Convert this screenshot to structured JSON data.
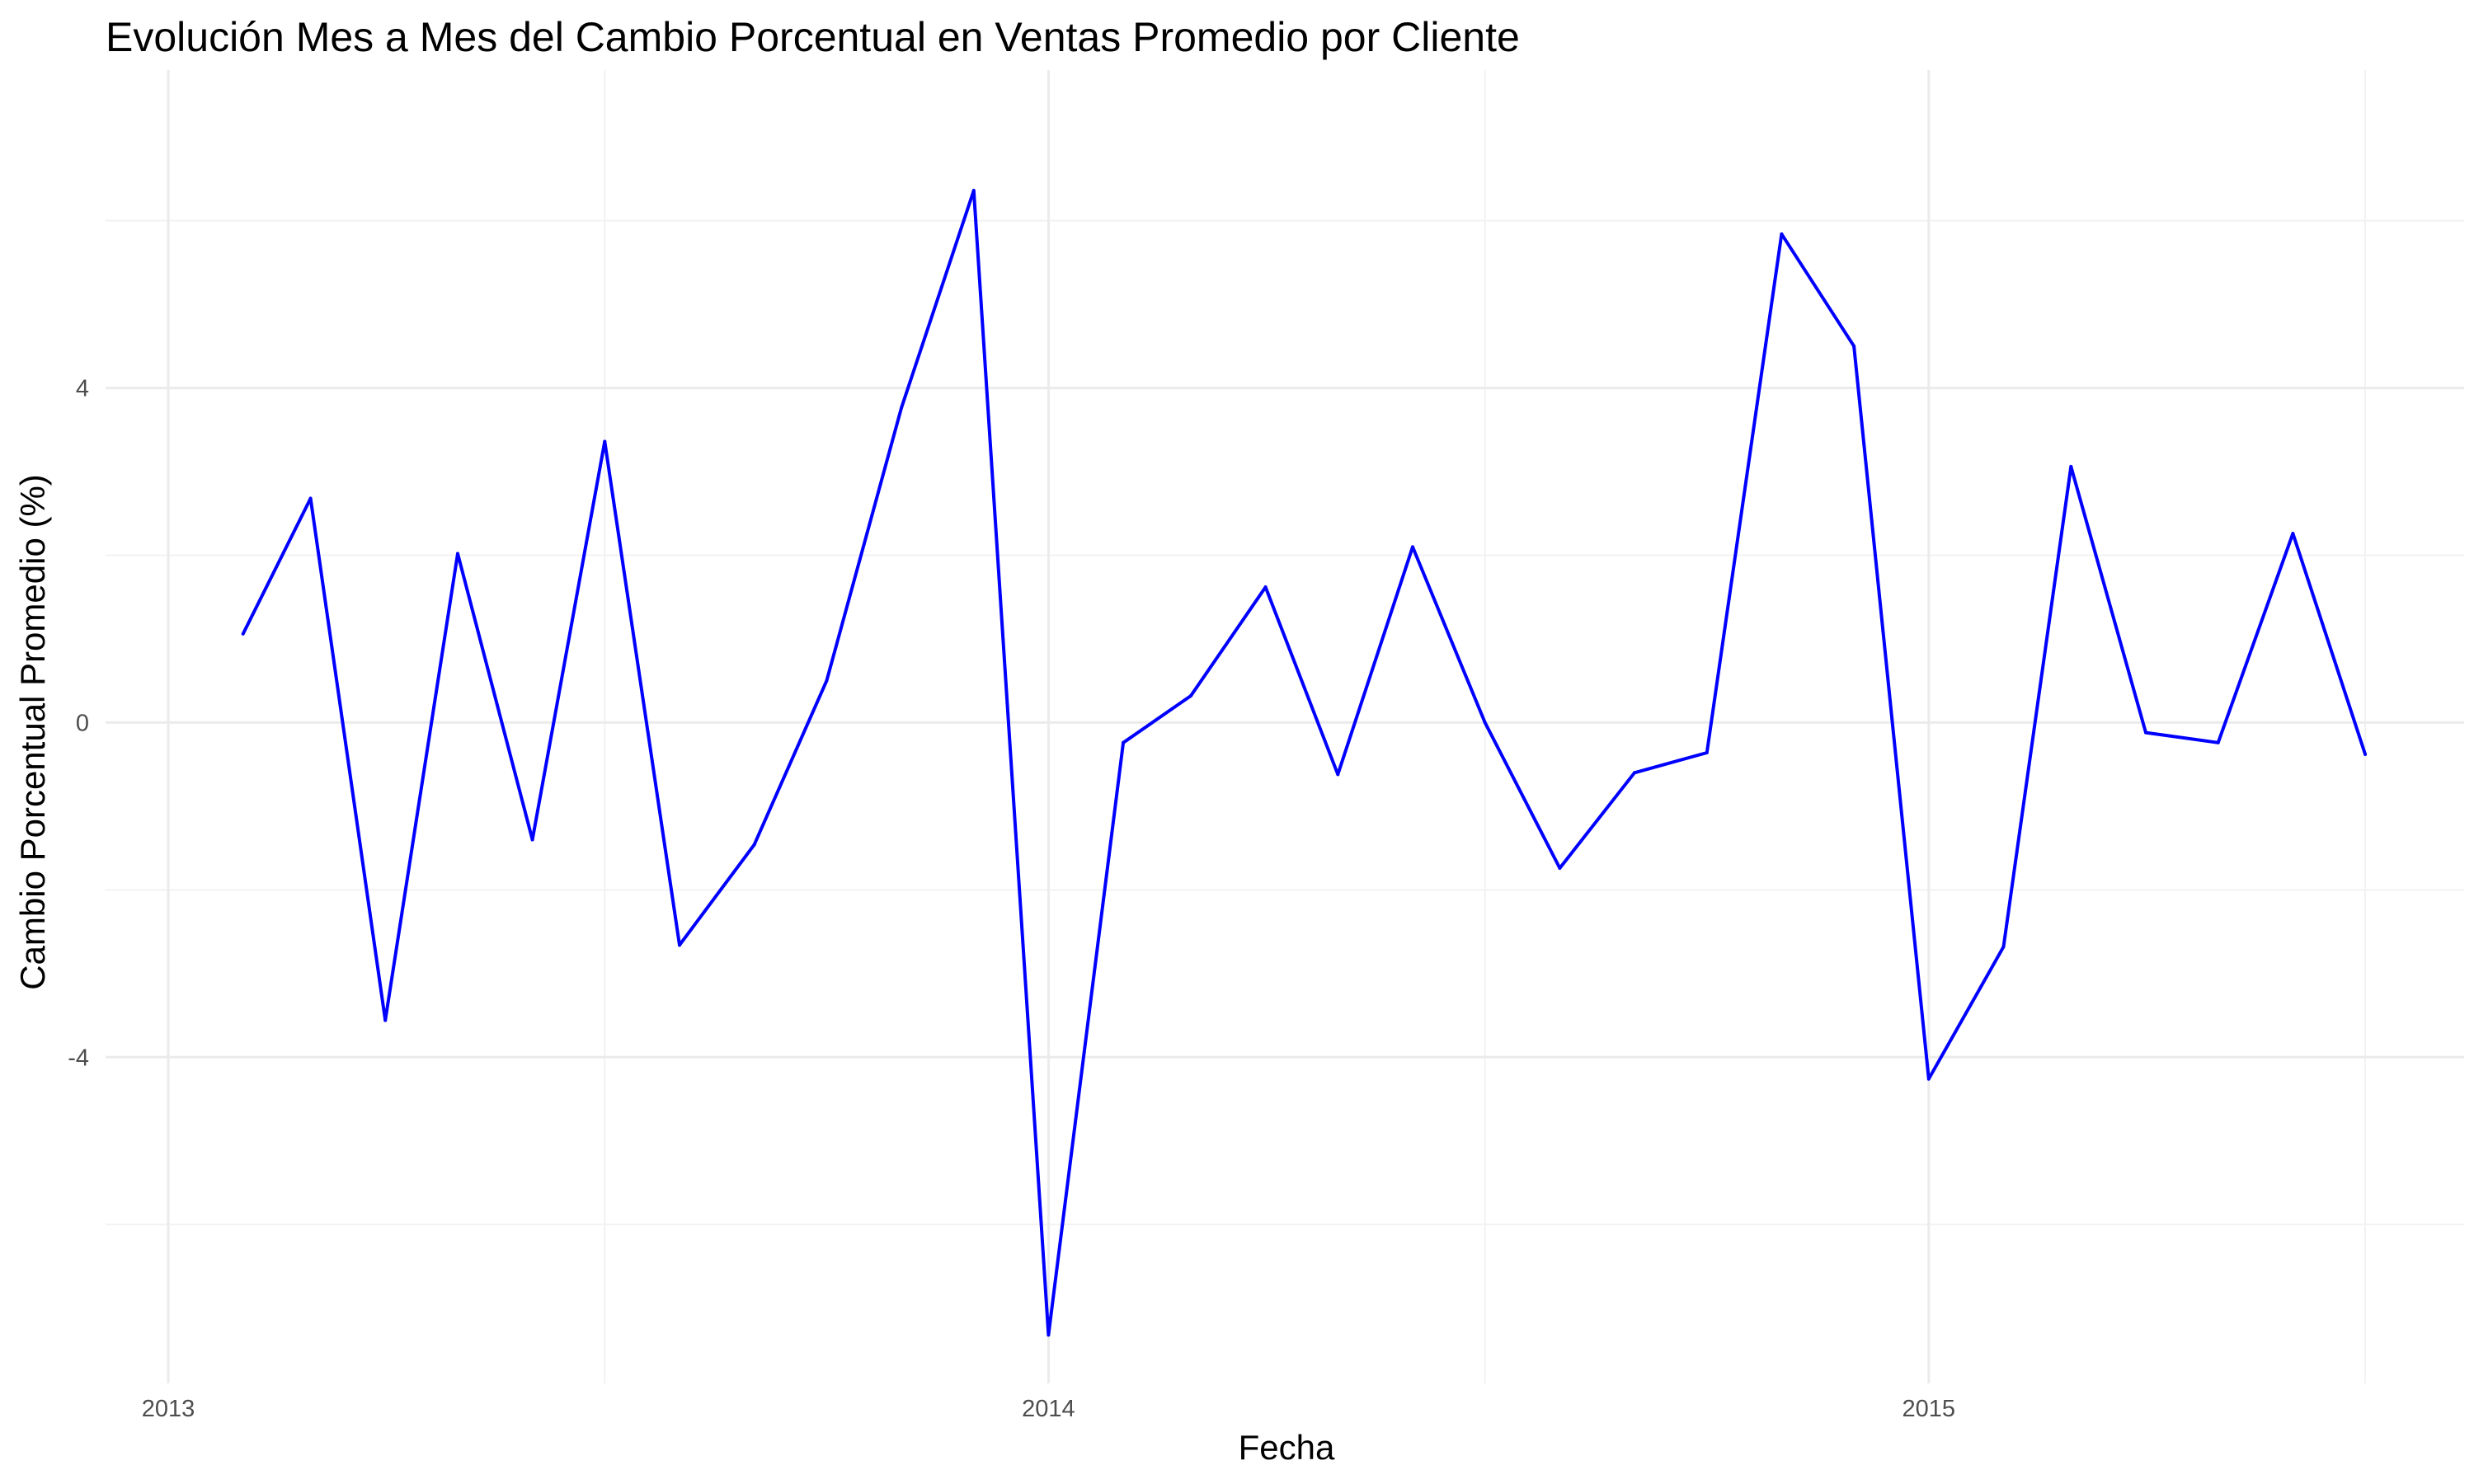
{
  "chart_data": {
    "type": "line",
    "title": "Evolución Mes a Mes del Cambio Porcentual en Ventas Promedio por Cliente",
    "xlabel": "Fecha",
    "ylabel": "Cambio Porcentual Promedio (%)",
    "x_ticks": [
      {
        "label": "2013",
        "value": "2013-01-01"
      },
      {
        "label": "2014",
        "value": "2014-01-01"
      },
      {
        "label": "2015",
        "value": "2015-01-01"
      }
    ],
    "x_minor_ticks": [
      "2013-07-01",
      "2014-07-01",
      "2015-07-01"
    ],
    "y_ticks": [
      {
        "label": "4",
        "value": 4
      },
      {
        "label": "0",
        "value": 0
      },
      {
        "label": "-4",
        "value": -4
      }
    ],
    "y_minor_ticks": [
      6,
      2,
      -2,
      -6
    ],
    "xlim": [
      "2012-12-06",
      "2015-08-11"
    ],
    "ylim": [
      -7.9,
      7.8
    ],
    "grid": true,
    "legend": "none",
    "series": [
      {
        "color": "#0000ff",
        "points": [
          {
            "x": "2013-02-01",
            "y": 1.06
          },
          {
            "x": "2013-03-01",
            "y": 2.68
          },
          {
            "x": "2013-04-01",
            "y": -3.56
          },
          {
            "x": "2013-05-01",
            "y": 2.02
          },
          {
            "x": "2013-06-01",
            "y": -1.4
          },
          {
            "x": "2013-07-01",
            "y": 3.36
          },
          {
            "x": "2013-08-01",
            "y": -2.66
          },
          {
            "x": "2013-09-01",
            "y": -1.46
          },
          {
            "x": "2013-10-01",
            "y": 0.5
          },
          {
            "x": "2013-11-01",
            "y": 3.76
          },
          {
            "x": "2013-12-01",
            "y": 6.36
          },
          {
            "x": "2014-01-01",
            "y": -7.32
          },
          {
            "x": "2014-02-01",
            "y": -0.24
          },
          {
            "x": "2014-03-01",
            "y": 0.32
          },
          {
            "x": "2014-04-01",
            "y": 1.62
          },
          {
            "x": "2014-05-01",
            "y": -0.62
          },
          {
            "x": "2014-06-01",
            "y": 2.1
          },
          {
            "x": "2014-07-01",
            "y": 0.0
          },
          {
            "x": "2014-08-01",
            "y": -1.74
          },
          {
            "x": "2014-09-01",
            "y": -0.6
          },
          {
            "x": "2014-10-01",
            "y": -0.36
          },
          {
            "x": "2014-11-01",
            "y": 5.84
          },
          {
            "x": "2014-12-01",
            "y": 4.5
          },
          {
            "x": "2015-01-01",
            "y": -4.26
          },
          {
            "x": "2015-02-01",
            "y": -2.68
          },
          {
            "x": "2015-03-01",
            "y": 3.06
          },
          {
            "x": "2015-04-01",
            "y": -0.12
          },
          {
            "x": "2015-05-01",
            "y": -0.24
          },
          {
            "x": "2015-06-01",
            "y": 2.26
          },
          {
            "x": "2015-07-01",
            "y": -0.38
          }
        ]
      }
    ]
  }
}
